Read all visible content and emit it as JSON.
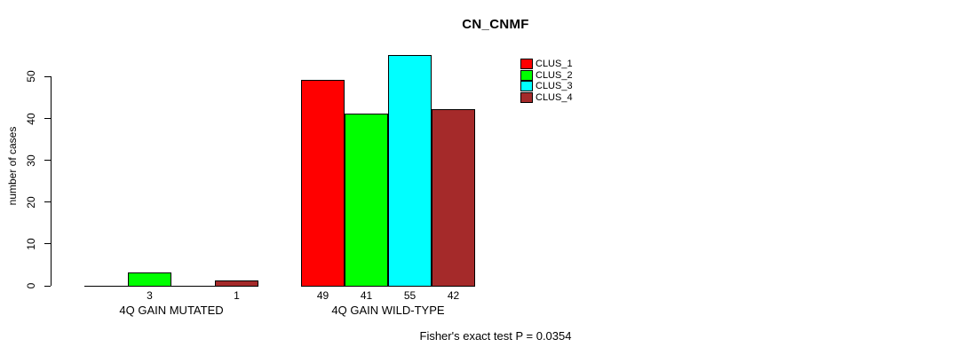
{
  "title": "CN_CNMF",
  "chart_data": {
    "type": "bar",
    "title": "CN_CNMF",
    "xlabel": "",
    "ylabel": "number of cases",
    "ylim": [
      0,
      55
    ],
    "yticks": [
      0,
      10,
      20,
      30,
      40,
      50
    ],
    "grid": false,
    "legend_position": "top-right",
    "categories": [
      "4Q GAIN MUTATED",
      "4Q GAIN WILD-TYPE"
    ],
    "series": [
      {
        "name": "CLUS_1",
        "color": "#FF0000",
        "values": [
          0,
          49
        ]
      },
      {
        "name": "CLUS_2",
        "color": "#00FF00",
        "values": [
          3,
          41
        ]
      },
      {
        "name": "CLUS_3",
        "color": "#00FFFF",
        "values": [
          0,
          55
        ]
      },
      {
        "name": "CLUS_4",
        "color": "#A52A2A",
        "values": [
          1,
          42
        ]
      }
    ],
    "bar_value_labels": [
      [
        "",
        "3",
        "",
        "1"
      ],
      [
        "49",
        "41",
        "55",
        "42"
      ]
    ],
    "annotation": "Fisher's exact test P = 0.0354"
  }
}
